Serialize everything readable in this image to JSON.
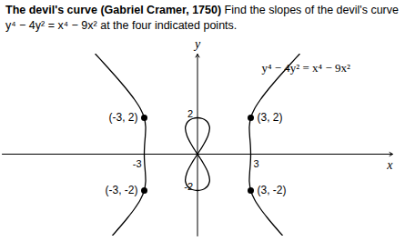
{
  "chart_data": {
    "type": "line",
    "title": "The devil's curve (Gabriel Cramer, 1750)",
    "subtitle": "Find the slopes of the devil's curve y⁴ − 4y² = x⁴ − 9x² at the four indicated points.",
    "x_label": "x",
    "y_label": "y",
    "annotations": [
      "y⁴ − 4y² = x⁴ − 9x²"
    ],
    "color": "#000000",
    "xlim": [
      -11,
      11
    ],
    "ylim": [
      -4.5,
      5.5
    ],
    "xticks": [
      {
        "value": -3,
        "label": "-3"
      },
      3
    ],
    "yticks": [
      2,
      {
        "value": -2,
        "label": "-2"
      }
    ],
    "series": [
      {
        "color": "#000000",
        "x": [
          4.816,
          4.367,
          3.939,
          3.547,
          3.218,
          3,
          2.922,
          2.921,
          2.942,
          2.982,
          3,
          2.982,
          2.942,
          2.921,
          2.922,
          3,
          3.218,
          3.547,
          3.939,
          4.367,
          4.816,
          5.277,
          5.748
        ],
        "y": [
          -4.5,
          -4,
          -3.5,
          -3,
          -2.5,
          -2,
          -1.5,
          -1.414,
          -1,
          -0.5,
          0,
          0.5,
          1,
          1.414,
          1.5,
          2,
          2.5,
          3,
          3.5,
          4,
          4.5,
          5,
          5.5
        ]
      },
      {
        "color": "#000000",
        "x": [
          -4.816,
          -4.367,
          -3.939,
          -3.547,
          -3.218,
          -3,
          -2.922,
          -2.921,
          -2.942,
          -2.982,
          -3,
          -2.982,
          -2.942,
          -2.921,
          -2.922,
          -3,
          -3.218,
          -3.547,
          -3.939,
          -4.367,
          -4.816,
          -5.277,
          -5.748
        ],
        "y": [
          -4.5,
          -4,
          -3.5,
          -3,
          -2.5,
          -2,
          -1.5,
          -1.414,
          -1,
          -0.5,
          0,
          0.5,
          1,
          1.414,
          1.5,
          2,
          2.5,
          3,
          3.5,
          4,
          4.5,
          5,
          5.5
        ]
      },
      {
        "color": "#000000",
        "x": [
          0,
          0.166,
          0.325,
          0.589,
          0.685,
          0.679,
          0.575,
          0.399,
          0.29,
          0,
          -0.29,
          -0.399,
          -0.575,
          -0.679,
          -0.685,
          -0.589,
          -0.325,
          -0.166,
          0,
          0.166,
          0.325,
          0.589,
          0.685,
          0.679,
          0.575,
          0.399,
          0.29,
          0,
          -0.29,
          -0.399,
          -0.575,
          -0.679,
          -0.685,
          -0.589,
          -0.325,
          -0.166,
          0
        ],
        "y": [
          0,
          0.25,
          0.5,
          1,
          1.414,
          1.5,
          1.75,
          1.9,
          1.95,
          2,
          1.95,
          1.9,
          1.75,
          1.5,
          1.414,
          1,
          0.5,
          0.25,
          0,
          -0.25,
          -0.5,
          -1,
          -1.414,
          -1.5,
          -1.75,
          -1.9,
          -1.95,
          -2,
          -1.95,
          -1.9,
          -1.75,
          -1.5,
          -1.414,
          -1,
          -0.5,
          -0.25,
          0
        ]
      }
    ],
    "points": [
      {
        "x": -3,
        "y": 2,
        "label": "(-3, 2)"
      },
      {
        "x": 3,
        "y": 2,
        "label": "(3, 2)"
      },
      {
        "x": -3,
        "y": -2,
        "label": "(-3, -2)"
      },
      {
        "x": 3,
        "y": -2,
        "label": "(3, -2)"
      }
    ]
  }
}
